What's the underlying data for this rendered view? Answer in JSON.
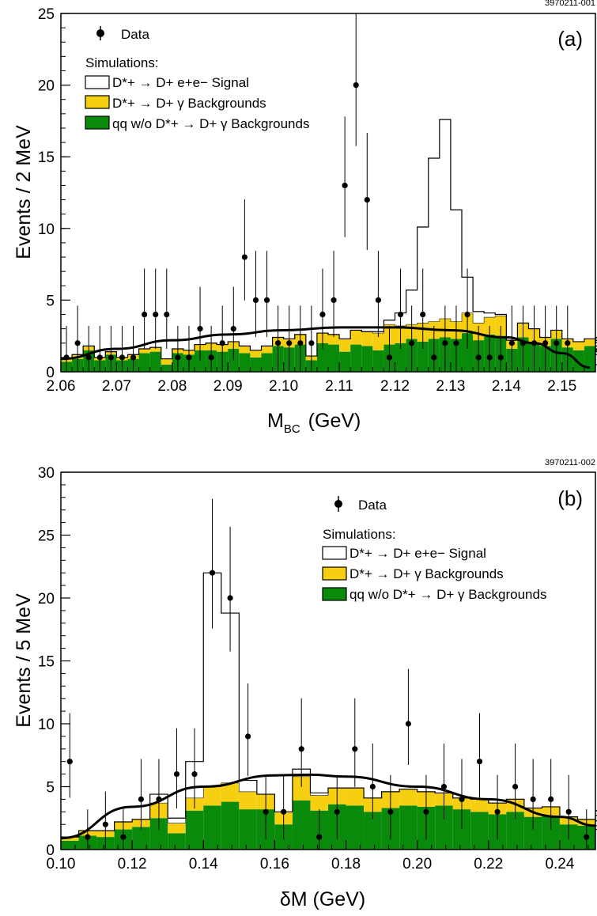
{
  "chart_data": [
    {
      "type": "histogram",
      "panel_label": "(a)",
      "figure_id": "3970211-001",
      "xlabel": "M",
      "xlabel_sub": "BC",
      "xlabel_unit": "(GeV)",
      "ylabel": "Events / 2 MeV",
      "xlim": [
        2.06,
        2.156
      ],
      "ylim": [
        0,
        25
      ],
      "xticks": [
        2.06,
        2.07,
        2.08,
        2.09,
        2.1,
        2.11,
        2.12,
        2.13,
        2.14,
        2.15
      ],
      "xtick_labels": [
        "2.06",
        "2.07",
        "2.08",
        "2.09",
        "2.10",
        "2.11",
        "2.12",
        "2.13",
        "2.14",
        "2.15"
      ],
      "yticks": [
        0,
        5,
        10,
        15,
        20,
        25
      ],
      "ytick_labels": [
        "0",
        "5",
        "10",
        "15",
        "20",
        "25"
      ],
      "bin_edges_start": 2.06,
      "bin_width": 0.002,
      "colors": {
        "signal_line": "#000000",
        "dsgamma": "#f6cf10",
        "qq": "#0a8a0a",
        "fit": "#000000",
        "data": "#000000"
      },
      "legend": {
        "data_label": "Data",
        "header": "Simulations:",
        "signal_label": "D*+ → D+ e+e− Signal",
        "dsgamma_label": "D*+ → D+ γ Backgrounds",
        "qq_label": "qq w/o D*+ → D+ γ Backgrounds"
      },
      "series": [
        {
          "name": "qq w/o D*+ → D+ γ Backgrounds",
          "values": [
            0.7,
            0.9,
            1.5,
            0.8,
            1.2,
            0.8,
            0.9,
            1.3,
            1.4,
            0.5,
            1.3,
            1.2,
            1.5,
            1.5,
            1.4,
            1.6,
            1.3,
            1.0,
            1.3,
            1.8,
            1.7,
            1.9,
            0.8,
            2.0,
            1.9,
            1.4,
            1.9,
            1.8,
            1.5,
            1.9,
            2.0,
            2.3,
            2.1,
            2.3,
            2.4,
            2.3,
            2.7,
            2.2,
            2.6,
            2.5,
            1.6,
            2.4,
            2.0,
            1.8,
            2.3,
            1.7,
            1.5,
            1.8,
            1.3,
            1.9,
            1.3,
            1.1,
            1.8,
            1.2,
            0.9,
            1.3,
            0.4
          ]
        },
        {
          "name": "D*+ → D+ γ Backgrounds",
          "values": [
            0.2,
            0.3,
            0.3,
            0.2,
            0.2,
            0.2,
            0.3,
            0.3,
            0.3,
            0.4,
            0.3,
            0.3,
            0.4,
            0.5,
            0.5,
            0.5,
            0.5,
            0.5,
            0.5,
            0.6,
            0.6,
            0.7,
            0.3,
            0.7,
            0.7,
            0.9,
            1.0,
            1.0,
            1.2,
            1.4,
            1.2,
            1.0,
            1.3,
            1.2,
            1.3,
            1.2,
            1.4,
            1.2,
            1.2,
            1.4,
            0.6,
            1.0,
            1.0,
            0.6,
            0.6,
            0.6,
            0.6,
            0.5,
            0.7,
            0.5,
            0.5,
            0.3,
            0.4,
            0.3,
            0.3,
            0.3,
            0.1
          ]
        },
        {
          "name": "D*+ → D+ e+e− Signal",
          "values": [
            0,
            0,
            0,
            0,
            0,
            0,
            0,
            0,
            0,
            0,
            0,
            0,
            0,
            0,
            0,
            0,
            0,
            0,
            0,
            0,
            0,
            0,
            0,
            0,
            0,
            0,
            0,
            0,
            0.1,
            0.3,
            0.9,
            2.4,
            6.7,
            11.4,
            13.9,
            7.8,
            2.5,
            0.8,
            0.3,
            0.1,
            0,
            0,
            0,
            0,
            0,
            0,
            0,
            0,
            0,
            0,
            0,
            0,
            0,
            0,
            0,
            0,
            0
          ]
        },
        {
          "name": "Data",
          "points": [
            [
              2.061,
              1
            ],
            [
              2.063,
              2
            ],
            [
              2.065,
              1
            ],
            [
              2.067,
              1
            ],
            [
              2.069,
              1
            ],
            [
              2.071,
              1
            ],
            [
              2.073,
              1
            ],
            [
              2.075,
              4
            ],
            [
              2.077,
              4
            ],
            [
              2.079,
              4
            ],
            [
              2.081,
              1
            ],
            [
              2.083,
              1
            ],
            [
              2.085,
              3
            ],
            [
              2.087,
              1
            ],
            [
              2.089,
              2
            ],
            [
              2.091,
              3
            ],
            [
              2.093,
              8
            ],
            [
              2.095,
              5
            ],
            [
              2.097,
              5
            ],
            [
              2.099,
              2
            ],
            [
              2.101,
              2
            ],
            [
              2.103,
              2
            ],
            [
              2.105,
              2
            ],
            [
              2.107,
              4
            ],
            [
              2.109,
              5
            ],
            [
              2.111,
              13
            ],
            [
              2.113,
              20
            ],
            [
              2.115,
              12
            ],
            [
              2.117,
              5
            ],
            [
              2.119,
              1
            ],
            [
              2.121,
              4
            ],
            [
              2.123,
              2
            ],
            [
              2.125,
              4
            ],
            [
              2.127,
              1
            ],
            [
              2.129,
              2
            ],
            [
              2.131,
              2
            ],
            [
              2.133,
              4
            ],
            [
              2.135,
              1
            ],
            [
              2.137,
              1
            ],
            [
              2.139,
              1
            ],
            [
              2.141,
              2
            ],
            [
              2.143,
              2
            ],
            [
              2.145,
              2
            ],
            [
              2.147,
              2
            ],
            [
              2.149,
              2
            ],
            [
              2.151,
              2
            ]
          ]
        },
        {
          "name": "fit",
          "points": [
            [
              2.06,
              0.9
            ],
            [
              2.07,
              1.6
            ],
            [
              2.08,
              2.2
            ],
            [
              2.09,
              2.6
            ],
            [
              2.1,
              2.9
            ],
            [
              2.11,
              3.1
            ],
            [
              2.12,
              3.1
            ],
            [
              2.13,
              2.9
            ],
            [
              2.14,
              2.4
            ],
            [
              2.145,
              2.0
            ],
            [
              2.15,
              1.3
            ],
            [
              2.155,
              0.3
            ]
          ]
        }
      ]
    },
    {
      "type": "histogram",
      "panel_label": "(b)",
      "figure_id": "3970211-002",
      "xlabel": "δM (GeV)",
      "ylabel": "Events / 5 MeV",
      "xlim": [
        0.1,
        0.25
      ],
      "ylim": [
        0,
        30
      ],
      "xticks": [
        0.1,
        0.12,
        0.14,
        0.16,
        0.18,
        0.2,
        0.22,
        0.24
      ],
      "xtick_labels": [
        "0.10",
        "0.12",
        "0.14",
        "0.16",
        "0.18",
        "0.20",
        "0.22",
        "0.24"
      ],
      "yticks": [
        0,
        5,
        10,
        15,
        20,
        25,
        30
      ],
      "ytick_labels": [
        "0",
        "5",
        "10",
        "15",
        "20",
        "25",
        "30"
      ],
      "bin_edges_start": 0.1,
      "bin_width": 0.005,
      "colors": {
        "signal_line": "#000000",
        "dsgamma": "#f6cf10",
        "qq": "#0a8a0a",
        "fit": "#000000",
        "data": "#000000"
      },
      "legend": {
        "data_label": "Data",
        "header": "Simulations:",
        "signal_label": "D*+ → D+ e+e− Signal",
        "dsgamma_label": "D*+ → D+ γ Backgrounds",
        "qq_label": "qq w/o D*+ → D+ γ Backgrounds"
      },
      "series": [
        {
          "name": "qq w/o D*+ → D+ γ Backgrounds",
          "values": [
            0.7,
            1.1,
            1.0,
            1.6,
            1.8,
            2.5,
            1.3,
            3.1,
            3.5,
            3.8,
            3.2,
            3.2,
            2.0,
            3.9,
            3.1,
            3.6,
            3.5,
            3.0,
            3.3,
            3.5,
            3.4,
            3.5,
            3.2,
            3.0,
            2.8,
            3.0,
            2.6,
            2.7,
            2.0,
            1.9,
            2.2,
            2.5,
            1.9,
            1.3,
            1.5
          ]
        },
        {
          "name": "D*+ → D+ γ Backgrounds",
          "values": [
            0.3,
            0.4,
            0.5,
            0.6,
            0.6,
            1.2,
            0.8,
            1.0,
            1.5,
            1.5,
            1.4,
            1.2,
            1.0,
            1.9,
            1.2,
            1.3,
            1.4,
            1.1,
            1.3,
            1.3,
            1.2,
            1.0,
            0.9,
            1.0,
            0.9,
            1.0,
            0.7,
            0.7,
            0.6,
            0.5,
            0.5,
            0.6,
            0.4,
            0.3,
            0.4
          ]
        },
        {
          "name": "D*+ → D+ e+e− Signal",
          "values": [
            0,
            0,
            0,
            0,
            0,
            0.7,
            0.4,
            2.9,
            17.0,
            13.5,
            0.9,
            0,
            0,
            0.6,
            0.2,
            0,
            0,
            0,
            0,
            0,
            0,
            0,
            0,
            0,
            0,
            0,
            0,
            0,
            0,
            0,
            0,
            0,
            0,
            0,
            0
          ]
        },
        {
          "name": "Data",
          "points": [
            [
              0.1025,
              7
            ],
            [
              0.1075,
              1
            ],
            [
              0.1125,
              2
            ],
            [
              0.1175,
              1
            ],
            [
              0.1225,
              4
            ],
            [
              0.1275,
              4
            ],
            [
              0.1325,
              6
            ],
            [
              0.1375,
              6
            ],
            [
              0.1425,
              22
            ],
            [
              0.1475,
              20
            ],
            [
              0.1525,
              9
            ],
            [
              0.1575,
              3
            ],
            [
              0.1625,
              3
            ],
            [
              0.1675,
              8
            ],
            [
              0.1725,
              1
            ],
            [
              0.1775,
              3
            ],
            [
              0.1825,
              8
            ],
            [
              0.1875,
              5
            ],
            [
              0.1925,
              3
            ],
            [
              0.1975,
              10
            ],
            [
              0.2025,
              3
            ],
            [
              0.2075,
              5
            ],
            [
              0.2125,
              4
            ],
            [
              0.2175,
              7
            ],
            [
              0.2225,
              3
            ],
            [
              0.2275,
              5
            ],
            [
              0.2325,
              4
            ],
            [
              0.2375,
              4
            ],
            [
              0.2425,
              3
            ],
            [
              0.2475,
              1
            ]
          ]
        },
        {
          "name": "fit",
          "points": [
            [
              0.1,
              0.9
            ],
            [
              0.12,
              3.4
            ],
            [
              0.14,
              5.0
            ],
            [
              0.16,
              5.9
            ],
            [
              0.17,
              5.95
            ],
            [
              0.18,
              5.8
            ],
            [
              0.2,
              5.0
            ],
            [
              0.22,
              4.0
            ],
            [
              0.24,
              2.6
            ],
            [
              0.25,
              1.9
            ]
          ]
        }
      ]
    }
  ]
}
